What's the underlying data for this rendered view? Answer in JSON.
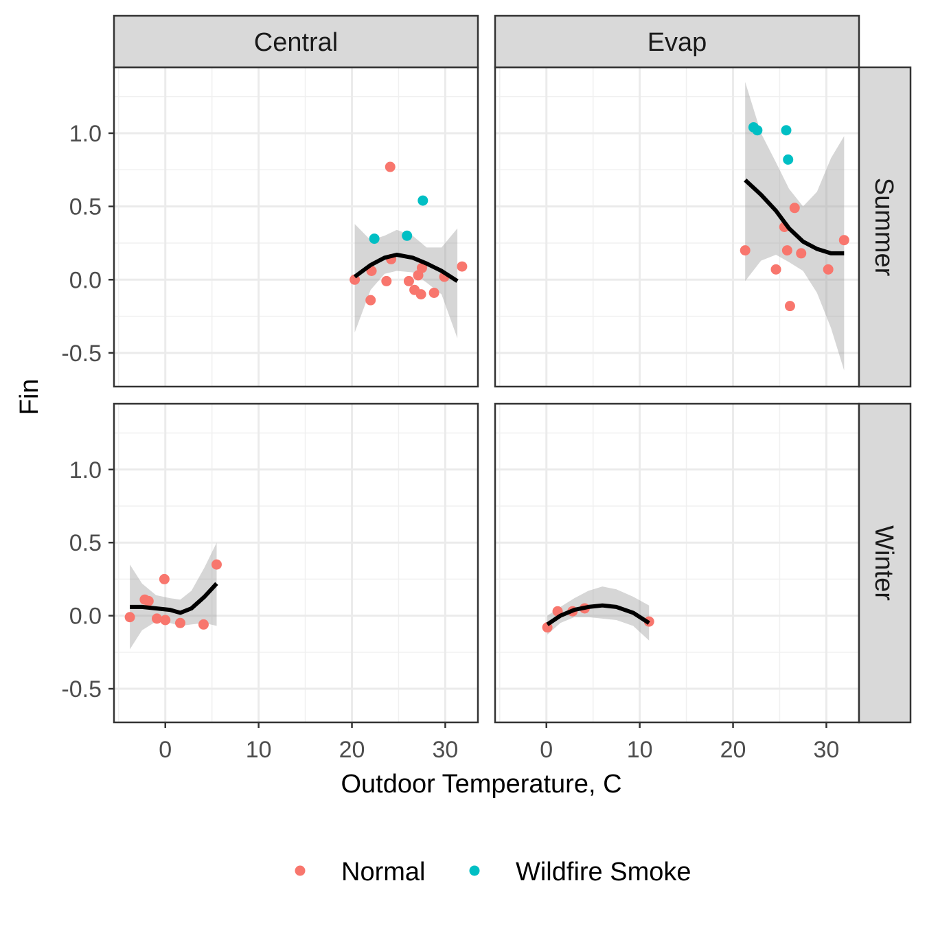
{
  "chart_data": {
    "type": "scatter",
    "xlabel": "Outdoor Temperature, C",
    "ylabel": "Fin",
    "xlim": [
      -5.5,
      33.5
    ],
    "ylim": [
      -0.73,
      1.45
    ],
    "x_ticks": [
      0,
      10,
      20,
      30
    ],
    "y_ticks": [
      -0.5,
      0.0,
      0.5,
      1.0
    ],
    "x_tick_labels": [
      "0",
      "10",
      "20",
      "30"
    ],
    "y_tick_labels": [
      "-0.5",
      "0.0",
      "0.5",
      "1.0"
    ],
    "columns": [
      "Central",
      "Evap"
    ],
    "rows": [
      "Summer",
      "Winter"
    ],
    "grid": true,
    "legend": {
      "position": "bottom",
      "entries": [
        {
          "label": "Normal",
          "color": "#F8766D"
        },
        {
          "label": "Wildfire Smoke",
          "color": "#00BFC4"
        }
      ]
    },
    "smooth_color": "#000000",
    "band_color": "#999999",
    "panels": [
      {
        "col": "Central",
        "row": "Summer",
        "points": [
          {
            "x": 20.3,
            "y": 0.0,
            "group": "Normal"
          },
          {
            "x": 22.0,
            "y": -0.14,
            "group": "Normal"
          },
          {
            "x": 22.1,
            "y": 0.06,
            "group": "Normal"
          },
          {
            "x": 23.7,
            "y": -0.01,
            "group": "Normal"
          },
          {
            "x": 24.1,
            "y": 0.77,
            "group": "Normal"
          },
          {
            "x": 24.2,
            "y": 0.14,
            "group": "Normal"
          },
          {
            "x": 26.1,
            "y": -0.01,
            "group": "Normal"
          },
          {
            "x": 26.7,
            "y": -0.07,
            "group": "Normal"
          },
          {
            "x": 27.1,
            "y": 0.03,
            "group": "Normal"
          },
          {
            "x": 27.4,
            "y": -0.1,
            "group": "Normal"
          },
          {
            "x": 27.5,
            "y": 0.08,
            "group": "Normal"
          },
          {
            "x": 28.8,
            "y": -0.09,
            "group": "Normal"
          },
          {
            "x": 29.9,
            "y": 0.02,
            "group": "Normal"
          },
          {
            "x": 31.8,
            "y": 0.09,
            "group": "Normal"
          },
          {
            "x": 22.4,
            "y": 0.28,
            "group": "Wildfire Smoke"
          },
          {
            "x": 25.9,
            "y": 0.3,
            "group": "Wildfire Smoke"
          },
          {
            "x": 27.6,
            "y": 0.54,
            "group": "Wildfire Smoke"
          }
        ],
        "smooth": [
          {
            "x": 20.3,
            "y": 0.02,
            "lo": -0.36,
            "hi": 0.38
          },
          {
            "x": 22.0,
            "y": 0.1,
            "lo": -0.07,
            "hi": 0.27
          },
          {
            "x": 23.5,
            "y": 0.15,
            "lo": 0.04,
            "hi": 0.3
          },
          {
            "x": 24.8,
            "y": 0.17,
            "lo": 0.06,
            "hi": 0.34
          },
          {
            "x": 26.5,
            "y": 0.15,
            "lo": 0.05,
            "hi": 0.3
          },
          {
            "x": 28.0,
            "y": 0.11,
            "lo": -0.02,
            "hi": 0.22
          },
          {
            "x": 29.6,
            "y": 0.06,
            "lo": -0.1,
            "hi": 0.22
          },
          {
            "x": 31.3,
            "y": -0.01,
            "lo": -0.4,
            "hi": 0.35
          }
        ]
      },
      {
        "col": "Evap",
        "row": "Summer",
        "points": [
          {
            "x": 21.3,
            "y": 0.2,
            "group": "Normal"
          },
          {
            "x": 24.6,
            "y": 0.07,
            "group": "Normal"
          },
          {
            "x": 25.5,
            "y": 0.36,
            "group": "Normal"
          },
          {
            "x": 25.8,
            "y": 0.2,
            "group": "Normal"
          },
          {
            "x": 26.1,
            "y": -0.18,
            "group": "Normal"
          },
          {
            "x": 26.6,
            "y": 0.49,
            "group": "Normal"
          },
          {
            "x": 27.3,
            "y": 0.18,
            "group": "Normal"
          },
          {
            "x": 30.2,
            "y": 0.07,
            "group": "Normal"
          },
          {
            "x": 31.9,
            "y": 0.27,
            "group": "Normal"
          },
          {
            "x": 22.2,
            "y": 1.04,
            "group": "Wildfire Smoke"
          },
          {
            "x": 22.6,
            "y": 1.02,
            "group": "Wildfire Smoke"
          },
          {
            "x": 25.7,
            "y": 1.02,
            "group": "Wildfire Smoke"
          },
          {
            "x": 25.9,
            "y": 0.82,
            "group": "Wildfire Smoke"
          }
        ],
        "smooth": [
          {
            "x": 21.3,
            "y": 0.68,
            "lo": -0.01,
            "hi": 1.35
          },
          {
            "x": 23.0,
            "y": 0.58,
            "lo": 0.13,
            "hi": 1.0
          },
          {
            "x": 24.6,
            "y": 0.47,
            "lo": 0.17,
            "hi": 0.8
          },
          {
            "x": 26.0,
            "y": 0.35,
            "lo": 0.12,
            "hi": 0.62
          },
          {
            "x": 27.5,
            "y": 0.26,
            "lo": 0.06,
            "hi": 0.5
          },
          {
            "x": 29.0,
            "y": 0.21,
            "lo": -0.09,
            "hi": 0.6
          },
          {
            "x": 30.5,
            "y": 0.18,
            "lo": -0.33,
            "hi": 0.83
          },
          {
            "x": 31.9,
            "y": 0.18,
            "lo": -0.62,
            "hi": 0.98
          }
        ]
      },
      {
        "col": "Central",
        "row": "Winter",
        "points": [
          {
            "x": -3.8,
            "y": -0.01,
            "group": "Normal"
          },
          {
            "x": -2.2,
            "y": 0.11,
            "group": "Normal"
          },
          {
            "x": -1.8,
            "y": 0.1,
            "group": "Normal"
          },
          {
            "x": -0.9,
            "y": -0.02,
            "group": "Normal"
          },
          {
            "x": -0.1,
            "y": 0.25,
            "group": "Normal"
          },
          {
            "x": 0.0,
            "y": -0.03,
            "group": "Normal"
          },
          {
            "x": 1.6,
            "y": -0.05,
            "group": "Normal"
          },
          {
            "x": 4.1,
            "y": -0.06,
            "group": "Normal"
          },
          {
            "x": 5.5,
            "y": 0.35,
            "group": "Normal"
          }
        ],
        "smooth": [
          {
            "x": -3.8,
            "y": 0.06,
            "lo": -0.23,
            "hi": 0.35
          },
          {
            "x": -2.5,
            "y": 0.06,
            "lo": -0.1,
            "hi": 0.22
          },
          {
            "x": -1.0,
            "y": 0.05,
            "lo": -0.04,
            "hi": 0.14
          },
          {
            "x": 0.5,
            "y": 0.04,
            "lo": -0.05,
            "hi": 0.12
          },
          {
            "x": 1.6,
            "y": 0.02,
            "lo": -0.07,
            "hi": 0.11
          },
          {
            "x": 2.8,
            "y": 0.05,
            "lo": -0.06,
            "hi": 0.17
          },
          {
            "x": 4.2,
            "y": 0.13,
            "lo": -0.05,
            "hi": 0.33
          },
          {
            "x": 5.5,
            "y": 0.22,
            "lo": -0.07,
            "hi": 0.5
          }
        ]
      },
      {
        "col": "Evap",
        "row": "Winter",
        "points": [
          {
            "x": 0.1,
            "y": -0.08,
            "group": "Normal"
          },
          {
            "x": 1.2,
            "y": 0.03,
            "group": "Normal"
          },
          {
            "x": 2.8,
            "y": 0.03,
            "group": "Normal"
          },
          {
            "x": 4.1,
            "y": 0.05,
            "group": "Normal"
          },
          {
            "x": 11.0,
            "y": -0.04,
            "group": "Normal"
          }
        ],
        "smooth": [
          {
            "x": 0.1,
            "y": -0.06,
            "lo": -0.13,
            "hi": 0.0
          },
          {
            "x": 1.5,
            "y": 0.0,
            "lo": -0.05,
            "hi": 0.06
          },
          {
            "x": 3.0,
            "y": 0.04,
            "lo": -0.01,
            "hi": 0.12
          },
          {
            "x": 4.5,
            "y": 0.06,
            "lo": -0.01,
            "hi": 0.17
          },
          {
            "x": 6.0,
            "y": 0.07,
            "lo": -0.02,
            "hi": 0.2
          },
          {
            "x": 7.5,
            "y": 0.06,
            "lo": -0.03,
            "hi": 0.18
          },
          {
            "x": 9.3,
            "y": 0.02,
            "lo": -0.07,
            "hi": 0.13
          },
          {
            "x": 11.0,
            "y": -0.05,
            "lo": -0.17,
            "hi": 0.07
          }
        ]
      }
    ]
  }
}
